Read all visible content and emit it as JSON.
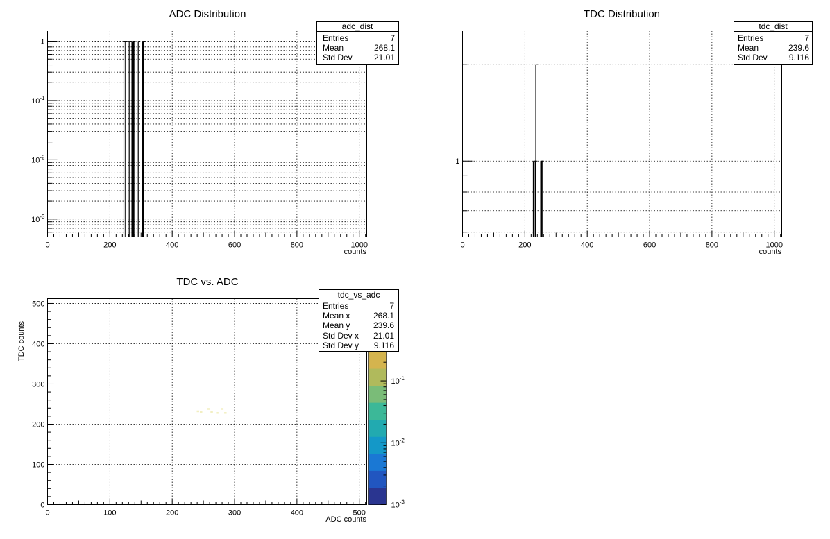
{
  "chart_data": [
    {
      "id": "adc",
      "type": "histogram",
      "title": "ADC Distribution",
      "xlabel": "counts",
      "ylabel": "",
      "xlim": [
        0,
        1024
      ],
      "ylim": [
        0.0005,
        1.5
      ],
      "yscale": "log",
      "grid": true,
      "x_ticks": [
        0,
        200,
        400,
        600,
        800,
        1000
      ],
      "y_tick_labels": [
        {
          "value": 1,
          "base": "1",
          "exp": ""
        },
        {
          "value": 0.1,
          "base": "10",
          "exp": "-1"
        },
        {
          "value": 0.01,
          "base": "10",
          "exp": "-2"
        },
        {
          "value": 0.001,
          "base": "10",
          "exp": "-3"
        }
      ],
      "bins_x": [
        245,
        250,
        262,
        272,
        276,
        291,
        306
      ],
      "bins_y": [
        1,
        1,
        1,
        1,
        1,
        1,
        1
      ],
      "bins_weight": [
        1,
        1,
        1,
        2,
        2,
        1,
        2
      ],
      "stats": {
        "name": "adc_dist",
        "rows": [
          [
            "Entries",
            "7"
          ],
          [
            "Mean",
            "268.1"
          ],
          [
            "Std Dev",
            "21.01"
          ]
        ]
      }
    },
    {
      "id": "tdc",
      "type": "histogram",
      "title": "TDC Distribution",
      "xlabel": "counts",
      "ylabel": "",
      "xlim": [
        0,
        1024
      ],
      "ylim": [
        0.58,
        2.55
      ],
      "yscale": "log",
      "grid": true,
      "x_ticks": [
        0,
        200,
        400,
        600,
        800,
        1000
      ],
      "y_tick_labels": [
        {
          "value": 1,
          "base": "1",
          "exp": ""
        }
      ],
      "bins_x": [
        227,
        233,
        235,
        252,
        254
      ],
      "bins_y": [
        1,
        1,
        2,
        1,
        1
      ],
      "bins_weight": [
        1,
        1,
        1,
        2,
        2
      ],
      "stats": {
        "name": "tdc_dist",
        "rows": [
          [
            "Entries",
            "7"
          ],
          [
            "Mean",
            "239.6"
          ],
          [
            "Std Dev",
            "9.116"
          ]
        ]
      }
    },
    {
      "id": "tdc_vs_adc",
      "type": "heatmap",
      "title": "TDC vs. ADC",
      "xlabel": "ADC counts",
      "ylabel": "TDC counts",
      "xlim": [
        0,
        512
      ],
      "ylim": [
        0,
        512
      ],
      "grid": true,
      "x_ticks": [
        0,
        100,
        200,
        300,
        400,
        500
      ],
      "y_ticks": [
        0,
        100,
        200,
        300,
        400,
        500
      ],
      "points": [
        {
          "x": 241,
          "y": 232
        },
        {
          "x": 246,
          "y": 230
        },
        {
          "x": 258,
          "y": 238
        },
        {
          "x": 263,
          "y": 230
        },
        {
          "x": 272,
          "y": 228
        },
        {
          "x": 280,
          "y": 238
        },
        {
          "x": 285,
          "y": 228
        }
      ],
      "colorbar": {
        "scale": "log",
        "range": [
          0.001,
          0.3
        ],
        "tick_labels": [
          {
            "value": 0.1,
            "base": "10",
            "exp": "-1"
          },
          {
            "value": 0.01,
            "base": "10",
            "exp": "-2"
          },
          {
            "value": 0.001,
            "base": "10",
            "exp": "-3"
          }
        ],
        "colors": [
          "#2a3590",
          "#2156c0",
          "#1a78d4",
          "#1498c8",
          "#22aab0",
          "#3cb898",
          "#7abc78",
          "#b0ba5c",
          "#d4b44e"
        ]
      },
      "stats": {
        "name": "tdc_vs_adc",
        "rows": [
          [
            "Entries",
            "7"
          ],
          [
            "Mean x",
            "268.1"
          ],
          [
            "Mean y",
            "239.6"
          ],
          [
            "Std Dev x",
            "21.01"
          ],
          [
            "Std Dev y",
            "9.116"
          ]
        ]
      }
    }
  ]
}
